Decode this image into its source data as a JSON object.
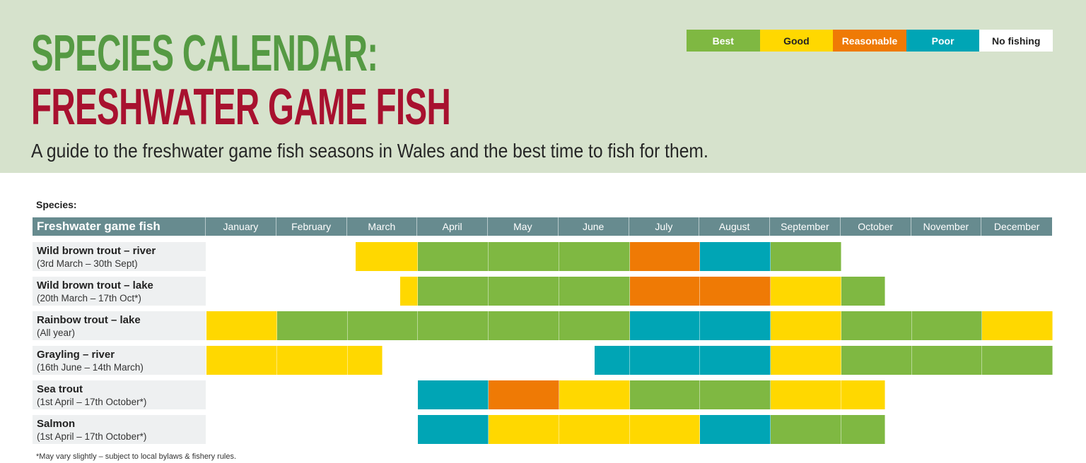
{
  "header": {
    "title_line1": "SPECIES CALENDAR:",
    "title_line2": "FRESHWATER GAME FISH",
    "subtitle": "A guide to the freshwater game fish seasons in Wales and the best time to fish for them."
  },
  "legend": [
    {
      "label": "Best",
      "color": "#7fb842",
      "text_color": "#ffffff"
    },
    {
      "label": "Good",
      "color": "#ffd800",
      "text_color": "#222222"
    },
    {
      "label": "Reasonable",
      "color": "#ef7a05",
      "text_color": "#ffffff"
    },
    {
      "label": "Poor",
      "color": "#00a5b5",
      "text_color": "#ffffff"
    },
    {
      "label": "No fishing",
      "color": "#ffffff",
      "text_color": "#222222"
    }
  ],
  "table": {
    "species_label": "Species:",
    "first_header": "Freshwater game fish",
    "months": [
      "January",
      "February",
      "March",
      "April",
      "May",
      "June",
      "July",
      "August",
      "September",
      "October",
      "November",
      "December"
    ]
  },
  "footnote": "*May vary slightly – subject to local bylaws & fishery rules.",
  "chart_data": {
    "type": "table",
    "title": "Species Calendar: Freshwater Game Fish",
    "subtitle": "A guide to the freshwater game fish seasons in Wales and the best time to fish for them.",
    "categories": [
      "January",
      "February",
      "March",
      "April",
      "May",
      "June",
      "July",
      "August",
      "September",
      "October",
      "November",
      "December"
    ],
    "legend": [
      "Best",
      "Good",
      "Reasonable",
      "Poor",
      "No fishing"
    ],
    "colors": {
      "Best": "#7fb842",
      "Good": "#ffd800",
      "Reasonable": "#ef7a05",
      "Poor": "#00a5b5",
      "No fishing": "#ffffff"
    },
    "series": [
      {
        "name": "Wild brown trout – river",
        "season": "(3rd March – 30th Sept)",
        "segments": [
          {
            "start": 2.12,
            "end": 3,
            "rating": "Good"
          },
          {
            "start": 3,
            "end": 6,
            "rating": "Best"
          },
          {
            "start": 6,
            "end": 7,
            "rating": "Reasonable"
          },
          {
            "start": 7,
            "end": 8,
            "rating": "Poor"
          },
          {
            "start": 8,
            "end": 9,
            "rating": "Best"
          }
        ]
      },
      {
        "name": "Wild brown trout – lake",
        "season": "(20th March – 17th Oct*)",
        "segments": [
          {
            "start": 2.75,
            "end": 3,
            "rating": "Good"
          },
          {
            "start": 3,
            "end": 6,
            "rating": "Best"
          },
          {
            "start": 6,
            "end": 8,
            "rating": "Reasonable"
          },
          {
            "start": 8,
            "end": 9,
            "rating": "Good"
          },
          {
            "start": 9,
            "end": 9.62,
            "rating": "Best"
          }
        ]
      },
      {
        "name": "Rainbow trout – lake",
        "season": "(All year)",
        "segments": [
          {
            "start": 0,
            "end": 1,
            "rating": "Good"
          },
          {
            "start": 1,
            "end": 6,
            "rating": "Best"
          },
          {
            "start": 6,
            "end": 8,
            "rating": "Poor"
          },
          {
            "start": 8,
            "end": 9,
            "rating": "Good"
          },
          {
            "start": 9,
            "end": 11,
            "rating": "Best"
          },
          {
            "start": 11,
            "end": 12,
            "rating": "Good"
          }
        ]
      },
      {
        "name": "Grayling – river",
        "season": "(16th June – 14th March)",
        "segments": [
          {
            "start": 0,
            "end": 2.5,
            "rating": "Good"
          },
          {
            "start": 5.5,
            "end": 8,
            "rating": "Poor"
          },
          {
            "start": 8,
            "end": 9,
            "rating": "Good"
          },
          {
            "start": 9,
            "end": 12,
            "rating": "Best"
          }
        ]
      },
      {
        "name": "Sea trout",
        "season": "(1st April – 17th October*)",
        "segments": [
          {
            "start": 3,
            "end": 4,
            "rating": "Poor"
          },
          {
            "start": 4,
            "end": 5,
            "rating": "Reasonable"
          },
          {
            "start": 5,
            "end": 6,
            "rating": "Good"
          },
          {
            "start": 6,
            "end": 8,
            "rating": "Best"
          },
          {
            "start": 8,
            "end": 9.62,
            "rating": "Good"
          }
        ]
      },
      {
        "name": "Salmon",
        "season": "(1st April – 17th October*)",
        "segments": [
          {
            "start": 3,
            "end": 4,
            "rating": "Poor"
          },
          {
            "start": 4,
            "end": 7,
            "rating": "Good"
          },
          {
            "start": 7,
            "end": 8,
            "rating": "Poor"
          },
          {
            "start": 8,
            "end": 9.62,
            "rating": "Best"
          }
        ]
      }
    ]
  }
}
